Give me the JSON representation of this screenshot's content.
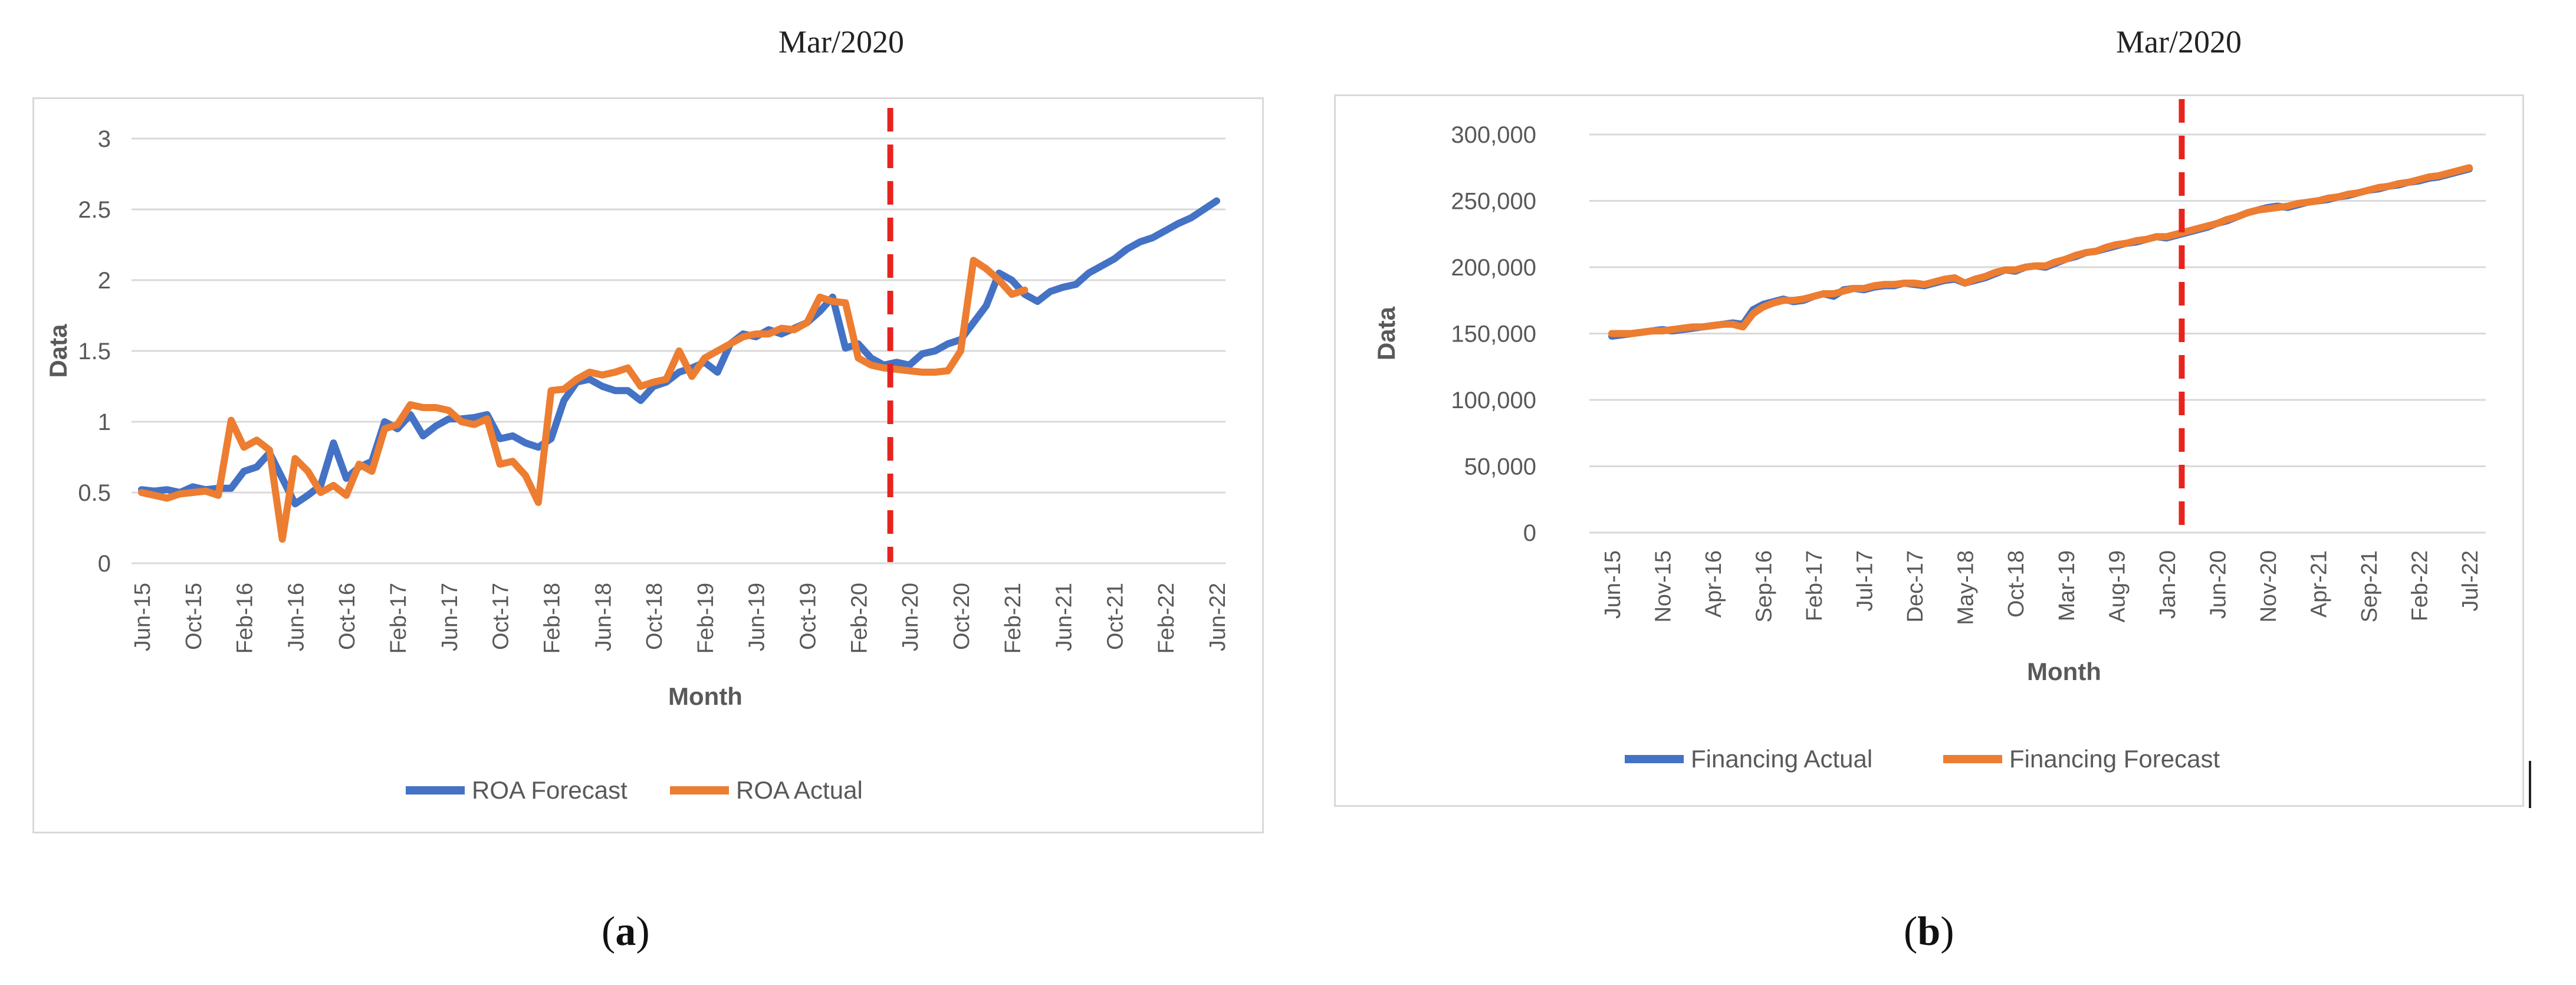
{
  "figure": {
    "panel_a": {
      "event_label": "Mar/2020",
      "caption_open": "(",
      "caption_letter": "a",
      "caption_close": ")"
    },
    "panel_b": {
      "event_label": "Mar/2020",
      "caption_open": "(",
      "caption_letter": "b",
      "caption_close": ")"
    }
  },
  "colors": {
    "forecast_blue": "#4472C4",
    "actual_orange": "#ED7D31",
    "event_red": "#E8231E",
    "grid": "#D9D9D9",
    "axis_text": "#595959"
  },
  "chart_data": [
    {
      "id": "roa",
      "type": "line",
      "title": "",
      "xlabel": "Month",
      "ylabel": "Data",
      "ylim": [
        0,
        3
      ],
      "yticks": [
        0,
        0.5,
        1,
        1.5,
        2,
        2.5,
        3
      ],
      "ytick_labels": [
        "0",
        "0.5",
        "1",
        "1.5",
        "2",
        "2.5",
        "3"
      ],
      "n_points": 85,
      "x_tick_labels": [
        "Jun-15",
        "Oct-15",
        "Feb-16",
        "Jun-16",
        "Oct-16",
        "Feb-17",
        "Jun-17",
        "Oct-17",
        "Feb-18",
        "Jun-18",
        "Oct-18",
        "Feb-19",
        "Jun-19",
        "Oct-19",
        "Feb-20",
        "Jun-20",
        "Oct-20",
        "Feb-21",
        "Jun-21",
        "Oct-21",
        "Feb-22",
        "Jun-22"
      ],
      "x_tick_every": 4,
      "event_index": 58.5,
      "legend_position": "bottom-center",
      "series": [
        {
          "name": "ROA Forecast",
          "color": "#4472C4",
          "values": [
            0.52,
            0.51,
            0.52,
            0.5,
            0.54,
            0.52,
            0.53,
            0.53,
            0.65,
            0.68,
            0.78,
            0.6,
            0.42,
            0.48,
            0.55,
            0.85,
            0.6,
            0.68,
            0.72,
            1.0,
            0.95,
            1.05,
            0.9,
            0.97,
            1.02,
            1.02,
            1.03,
            1.05,
            0.88,
            0.9,
            0.85,
            0.82,
            0.88,
            1.15,
            1.28,
            1.3,
            1.25,
            1.22,
            1.22,
            1.15,
            1.25,
            1.28,
            1.35,
            1.38,
            1.42,
            1.35,
            1.55,
            1.62,
            1.6,
            1.65,
            1.62,
            1.66,
            1.7,
            1.78,
            1.88,
            1.52,
            1.55,
            1.45,
            1.4,
            1.42,
            1.4,
            1.48,
            1.5,
            1.55,
            1.58,
            1.7,
            1.82,
            2.05,
            2.0,
            1.9,
            1.85,
            1.92,
            1.95,
            1.97,
            2.05,
            2.1,
            2.15,
            2.22,
            2.27,
            2.3,
            2.35,
            2.4,
            2.44,
            2.5,
            2.56
          ]
        },
        {
          "name": "ROA Actual",
          "color": "#ED7D31",
          "values": [
            0.5,
            0.48,
            0.46,
            0.49,
            0.5,
            0.51,
            0.48,
            1.01,
            0.82,
            0.87,
            0.8,
            0.17,
            0.74,
            0.65,
            0.5,
            0.55,
            0.48,
            0.7,
            0.65,
            0.95,
            0.98,
            1.12,
            1.1,
            1.1,
            1.08,
            1.0,
            0.98,
            1.02,
            0.7,
            0.72,
            0.62,
            0.43,
            1.22,
            1.23,
            1.3,
            1.35,
            1.33,
            1.35,
            1.38,
            1.25,
            1.28,
            1.3,
            1.5,
            1.32,
            1.45,
            1.5,
            1.55,
            1.6,
            1.62,
            1.62,
            1.66,
            1.65,
            1.7,
            1.88,
            1.85,
            1.84,
            1.45,
            1.4,
            1.38,
            1.37,
            1.36,
            1.35,
            1.35,
            1.36,
            1.5,
            2.14,
            2.08,
            2.0,
            1.9,
            1.93
          ]
        }
      ]
    },
    {
      "id": "financing",
      "type": "line",
      "title": "",
      "xlabel": "Month",
      "ylabel": "Data",
      "ylim": [
        0,
        300000
      ],
      "yticks": [
        0,
        50000,
        100000,
        150000,
        200000,
        250000,
        300000
      ],
      "ytick_labels": [
        "0",
        "50,000",
        "100,000",
        "150,000",
        "200,000",
        "250,000",
        "300,000"
      ],
      "n_points": 86,
      "x_tick_labels": [
        "Jun-15",
        "Nov-15",
        "Apr-16",
        "Sep-16",
        "Feb-17",
        "Jul-17",
        "Dec-17",
        "May-18",
        "Oct-18",
        "Mar-19",
        "Aug-19",
        "Jan-20",
        "Jun-20",
        "Nov-20",
        "Apr-21",
        "Sep-21",
        "Feb-22",
        "Jul-22"
      ],
      "x_tick_every": 5,
      "event_index": 56.5,
      "legend_position": "bottom-left",
      "series": [
        {
          "name": "Financing Actual",
          "color": "#4472C4",
          "values": [
            148000,
            149000,
            150000,
            151000,
            152000,
            153000,
            152000,
            153000,
            154000,
            155000,
            156000,
            157000,
            158000,
            157000,
            168000,
            172000,
            174000,
            176000,
            174000,
            175000,
            178000,
            180000,
            178000,
            183000,
            184000,
            183000,
            185000,
            186000,
            186000,
            188000,
            187000,
            186000,
            188000,
            190000,
            191000,
            188000,
            190000,
            192000,
            195000,
            198000,
            197000,
            200000,
            201000,
            200000,
            203000,
            206000,
            208000,
            211000,
            212000,
            214000,
            216000,
            218000,
            219000,
            221000,
            223000,
            222000,
            224000,
            226000,
            228000,
            230000,
            233000,
            235000,
            238000,
            241000,
            243000,
            245000,
            246000,
            245000,
            247000,
            249000,
            250000,
            251000,
            253000,
            254000,
            256000,
            258000,
            259000,
            261000,
            262000,
            264000,
            265000,
            267000,
            268000,
            270000,
            272000,
            274000
          ]
        },
        {
          "name": "Financing Forecast",
          "color": "#ED7D31",
          "values": [
            150000,
            150000,
            150000,
            151000,
            152000,
            152000,
            153000,
            154000,
            155000,
            155000,
            156000,
            157000,
            157000,
            155000,
            165000,
            170000,
            173000,
            175000,
            175000,
            176000,
            178000,
            180000,
            180000,
            182000,
            184000,
            184000,
            186000,
            187000,
            187000,
            188000,
            188000,
            187000,
            189000,
            191000,
            192000,
            188000,
            191000,
            193000,
            196000,
            198000,
            198000,
            200000,
            201000,
            201000,
            204000,
            206000,
            209000,
            211000,
            212000,
            215000,
            217000,
            218000,
            220000,
            221000,
            223000,
            223000,
            225000,
            227000,
            229000,
            231000,
            233000,
            236000,
            238000,
            241000,
            243000,
            244000,
            245000,
            246000,
            248000,
            249000,
            250000,
            252000,
            253000,
            255000,
            256000,
            258000,
            260000,
            261000,
            263000,
            264000,
            266000,
            268000,
            269000,
            271000,
            273000,
            275000
          ]
        }
      ]
    }
  ]
}
